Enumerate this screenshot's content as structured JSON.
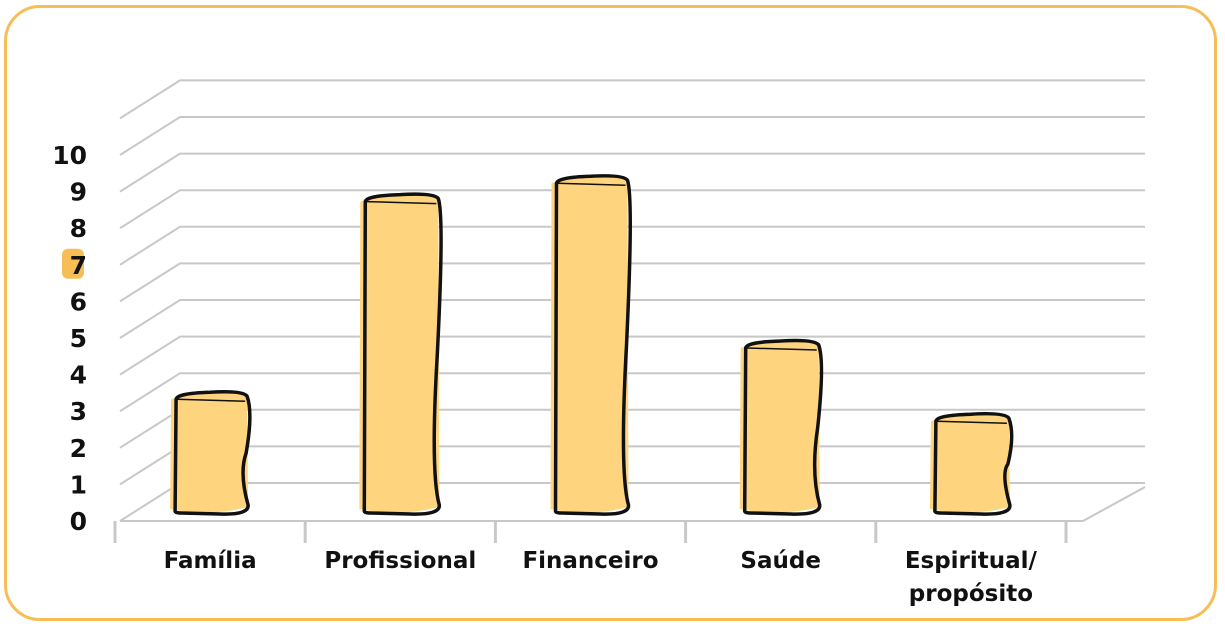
{
  "chart_data": {
    "type": "bar",
    "categories": [
      "Família",
      "Profissional",
      "Financeiro",
      "Saúde",
      "Espiritual/\npropósito"
    ],
    "values": [
      3.6,
      9.0,
      9.5,
      5.0,
      3.0
    ],
    "ylim": [
      0,
      10
    ],
    "yticks": [
      0,
      1,
      2,
      3,
      4,
      5,
      6,
      7,
      8,
      9,
      10
    ],
    "highlighted_tick": 7,
    "grid": true,
    "title": "",
    "xlabel": "",
    "ylabel": ""
  },
  "colors": {
    "bar_fill": "#fed47f",
    "bar_outline": "#111111",
    "grid": "#c8c8c8",
    "frame": "#f6be55",
    "highlight_tick": "#f6be55"
  }
}
